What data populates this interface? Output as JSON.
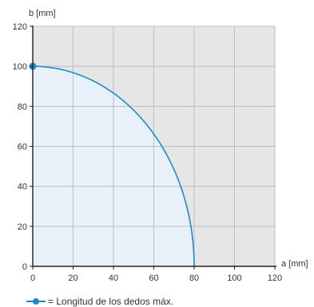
{
  "chart_data": {
    "type": "area",
    "xlabel": "a [mm]",
    "ylabel": "b [mm]",
    "xlim": [
      0,
      120
    ],
    "ylim": [
      0,
      120
    ],
    "xticks": [
      "0",
      "20",
      "40",
      "60",
      "80",
      "100",
      "120"
    ],
    "yticks": [
      "0",
      "20",
      "40",
      "60",
      "80",
      "100",
      "120"
    ],
    "grid": true,
    "series": [
      {
        "shape": "quarter-ellipse",
        "x": [
          0,
          10,
          20,
          30,
          40,
          50,
          60,
          70,
          75,
          78,
          80
        ],
        "y": [
          100,
          99.2,
          96.8,
          92.7,
          86.6,
          78.1,
          66.1,
          48.4,
          34.8,
          22.2,
          0
        ],
        "color": "#1a8cc8",
        "fill": "#e8f1fa"
      }
    ],
    "marker": {
      "x": 0,
      "y": 100
    },
    "legend_text": "= Longitud de los dedos máx.",
    "colors": {
      "plot_background": "#e6e6e6",
      "grid": "#bdbdbd",
      "curve": "#1a8cc8",
      "area_fill": "#e8f1fa",
      "axis": "#222222"
    }
  }
}
